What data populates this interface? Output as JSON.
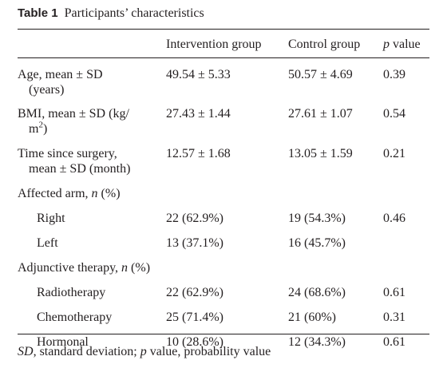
{
  "caption": {
    "label": "Table 1",
    "title": "Participants’ characteristics"
  },
  "header": {
    "col1": "",
    "col2": "Intervention group",
    "col3": "Control group",
    "col4_italic": "p",
    "col4_rest": " value"
  },
  "rows": {
    "age": {
      "line1": "Age, mean ± SD",
      "line2": "(years)",
      "intervention": "49.54 ± 5.33",
      "control": "50.57 ± 4.69",
      "p": "0.39"
    },
    "bmi": {
      "line1": "BMI, mean ± SD (kg/",
      "line2": "m",
      "line2_sup": "2",
      "line2_end": ")",
      "intervention": "27.43 ± 1.44",
      "control": "27.61 ± 1.07",
      "p": "0.54"
    },
    "time": {
      "line1": "Time since surgery,",
      "line2": "mean ± SD (month)",
      "intervention": "12.57 ± 1.68",
      "control": "13.05 ± 1.59",
      "p": "0.21"
    },
    "arm": {
      "label": "Affected arm, ",
      "n": "n",
      "pct": " (%)"
    },
    "right": {
      "label": "Right",
      "intervention": "22 (62.9%)",
      "control": "19 (54.3%)",
      "p": "0.46"
    },
    "left": {
      "label": "Left",
      "intervention": "13 (37.1%)",
      "control": "16 (45.7%)",
      "p": ""
    },
    "therapy": {
      "label": "Adjunctive therapy, ",
      "n": "n",
      "pct": " (%)"
    },
    "radio": {
      "label": "Radiotherapy",
      "intervention": "22 (62.9%)",
      "control": "24 (68.6%)",
      "p": "0.61"
    },
    "chemo": {
      "label": "Chemotherapy",
      "intervention": "25 (71.4%)",
      "control": "21 (60%)",
      "p": "0.31"
    },
    "hormonal": {
      "label": "Hormonal",
      "intervention": "10 (28.6%)",
      "control": "12 (34.3%)",
      "p": "0.61"
    }
  },
  "footnote": {
    "sd": "SD",
    "sd_text": ", standard deviation; ",
    "p": "p",
    "p_text": " value, probability value"
  }
}
